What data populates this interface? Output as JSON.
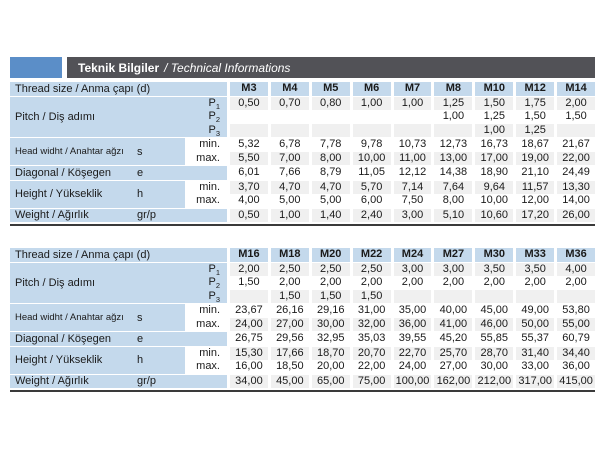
{
  "header": {
    "title_main": "Teknik Bilgiler",
    "title_sub": "/ Technical Informations",
    "bar_color": "#525257",
    "logo_color": "#5b8ec8"
  },
  "colors": {
    "label_blue": "#c4d9ec",
    "row_gray": "#f0f0f0",
    "row_white": "#ffffff",
    "divider_dark": "#3a3a3a"
  },
  "tables": [
    {
      "name": "spec-table-m3-m14",
      "header_label": "Thread size / Anma çapı (d)",
      "columns": [
        "M3",
        "M4",
        "M5",
        "M6",
        "M7",
        "M8",
        "M10",
        "M12",
        "M14"
      ],
      "groups": [
        {
          "label": "Pitch / Diş adımı",
          "symbol": "",
          "sub_in_blue": true,
          "rows": [
            {
              "sub": "P1",
              "values": [
                "0,50",
                "0,70",
                "0,80",
                "1,00",
                "1,00",
                "1,25",
                "1,50",
                "1,75",
                "2,00"
              ]
            },
            {
              "sub": "P2",
              "values": [
                "",
                "",
                "",
                "",
                "",
                "1,00",
                "1,25",
                "1,50",
                "1,50"
              ]
            },
            {
              "sub": "P3",
              "values": [
                "",
                "",
                "",
                "",
                "",
                "",
                "1,00",
                "1,25",
                ""
              ]
            }
          ]
        },
        {
          "label": "Head widht / Anahtar ağzı",
          "symbol": "s",
          "sub_in_blue": false,
          "rows": [
            {
              "sub": "min.",
              "values": [
                "5,32",
                "6,78",
                "7,78",
                "9,78",
                "10,73",
                "12,73",
                "16,73",
                "18,67",
                "21,67"
              ]
            },
            {
              "sub": "max.",
              "values": [
                "5,50",
                "7,00",
                "8,00",
                "10,00",
                "11,00",
                "13,00",
                "17,00",
                "19,00",
                "22,00"
              ]
            }
          ]
        },
        {
          "label": "Diagonal / Köşegen",
          "symbol": "e",
          "sub_in_blue": true,
          "rows": [
            {
              "sub": "",
              "values": [
                "6,01",
                "7,66",
                "8,79",
                "11,05",
                "12,12",
                "14,38",
                "18,90",
                "21,10",
                "24,49"
              ]
            }
          ]
        },
        {
          "label": "Height / Yükseklik",
          "symbol": "h",
          "sub_in_blue": false,
          "rows": [
            {
              "sub": "min.",
              "values": [
                "3,70",
                "4,70",
                "4,70",
                "5,70",
                "7,14",
                "7,64",
                "9,64",
                "11,57",
                "13,30"
              ]
            },
            {
              "sub": "max.",
              "values": [
                "4,00",
                "5,00",
                "5,00",
                "6,00",
                "7,50",
                "8,00",
                "10,00",
                "12,00",
                "14,00"
              ]
            }
          ]
        },
        {
          "label": "Weight / Ağırlık",
          "symbol": "gr/p",
          "sub_in_blue": true,
          "rows": [
            {
              "sub": "",
              "values": [
                "0,50",
                "1,00",
                "1,40",
                "2,40",
                "3,00",
                "5,10",
                "10,60",
                "17,20",
                "26,00"
              ]
            }
          ]
        }
      ]
    },
    {
      "name": "spec-table-m16-m36",
      "header_label": "Thread size / Anma çapı (d)",
      "columns": [
        "M16",
        "M18",
        "M20",
        "M22",
        "M24",
        "M27",
        "M30",
        "M33",
        "M36"
      ],
      "groups": [
        {
          "label": "Pitch / Diş adımı",
          "symbol": "",
          "sub_in_blue": true,
          "rows": [
            {
              "sub": "P1",
              "values": [
                "2,00",
                "2,50",
                "2,50",
                "2,50",
                "3,00",
                "3,00",
                "3,50",
                "3,50",
                "4,00"
              ]
            },
            {
              "sub": "P2",
              "values": [
                "1,50",
                "2,00",
                "2,00",
                "2,00",
                "2,00",
                "2,00",
                "2,00",
                "2,00",
                "2,00"
              ]
            },
            {
              "sub": "P3",
              "values": [
                "",
                "1,50",
                "1,50",
                "1,50",
                "",
                "",
                "",
                "",
                ""
              ]
            }
          ]
        },
        {
          "label": "Head widht / Anahtar ağzı",
          "symbol": "s",
          "sub_in_blue": false,
          "rows": [
            {
              "sub": "min.",
              "values": [
                "23,67",
                "26,16",
                "29,16",
                "31,00",
                "35,00",
                "40,00",
                "45,00",
                "49,00",
                "53,80"
              ]
            },
            {
              "sub": "max.",
              "values": [
                "24,00",
                "27,00",
                "30,00",
                "32,00",
                "36,00",
                "41,00",
                "46,00",
                "50,00",
                "55,00"
              ]
            }
          ]
        },
        {
          "label": "Diagonal / Köşegen",
          "symbol": "e",
          "sub_in_blue": true,
          "rows": [
            {
              "sub": "",
              "values": [
                "26,75",
                "29,56",
                "32,95",
                "35,03",
                "39,55",
                "45,20",
                "55,85",
                "55,37",
                "60,79"
              ]
            }
          ]
        },
        {
          "label": "Height / Yükseklik",
          "symbol": "h",
          "sub_in_blue": false,
          "rows": [
            {
              "sub": "min.",
              "values": [
                "15,30",
                "17,66",
                "18,70",
                "20,70",
                "22,70",
                "25,70",
                "28,70",
                "31,40",
                "34,40"
              ]
            },
            {
              "sub": "max.",
              "values": [
                "16,00",
                "18,50",
                "20,00",
                "22,00",
                "24,00",
                "27,00",
                "30,00",
                "33,00",
                "36,00"
              ]
            }
          ]
        },
        {
          "label": "Weight / Ağırlık",
          "symbol": "gr/p",
          "sub_in_blue": true,
          "rows": [
            {
              "sub": "",
              "values": [
                "34,00",
                "45,00",
                "65,00",
                "75,00",
                "100,00",
                "162,00",
                "212,00",
                "317,00",
                "415,00"
              ]
            }
          ]
        }
      ]
    }
  ]
}
